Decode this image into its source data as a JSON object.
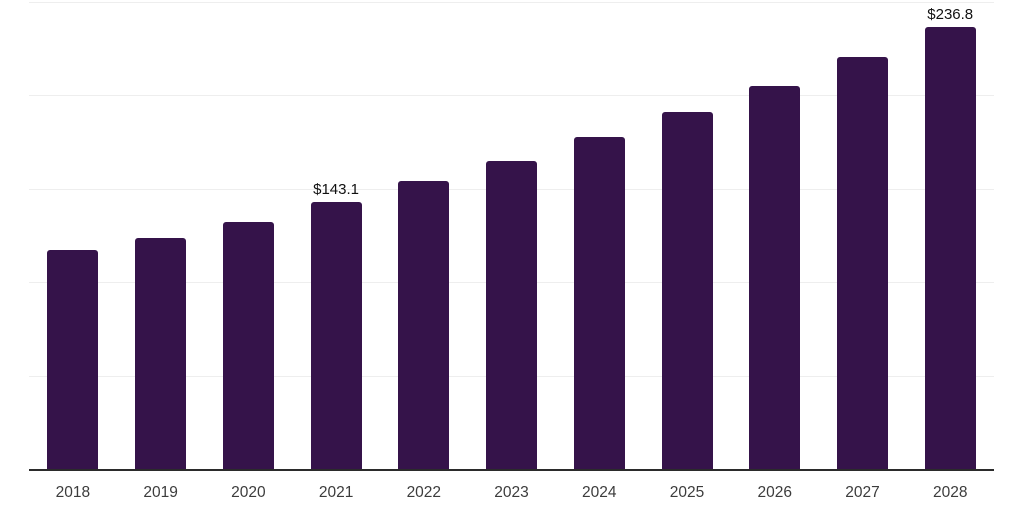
{
  "chart": {
    "colors": {
      "bar": "#35134a",
      "axis": "#2b2b2b",
      "grid": "#eeeeee",
      "tick_label": "#3c3c3c",
      "data_label": "#111111",
      "background": "#ffffff"
    }
  },
  "chart_data": {
    "type": "bar",
    "title": "",
    "xlabel": "",
    "ylabel": "",
    "categories": [
      "2018",
      "2019",
      "2020",
      "2021",
      "2022",
      "2023",
      "2024",
      "2025",
      "2026",
      "2027",
      "2028"
    ],
    "values": [
      117.0,
      123.5,
      132.0,
      143.1,
      154.0,
      165.0,
      177.5,
      191.0,
      205.0,
      220.5,
      236.8
    ],
    "data_labels": [
      "",
      "",
      "",
      "$143.1",
      "",
      "",
      "",
      "",
      "",
      "",
      "$236.8"
    ],
    "ylim": [
      0,
      250
    ],
    "gridline_values": [
      50,
      100,
      150,
      200,
      250
    ],
    "grid": "horizontal",
    "legend": "none",
    "currency_prefix": "$"
  }
}
